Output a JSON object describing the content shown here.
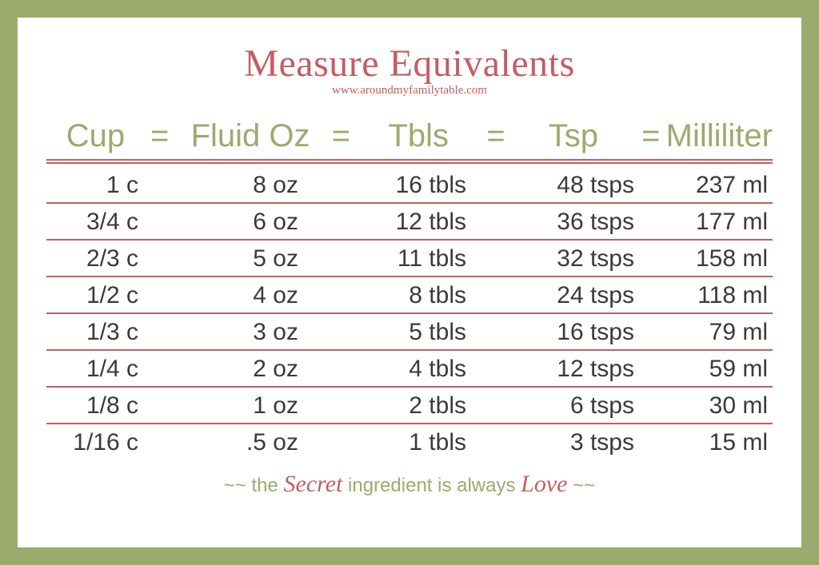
{
  "title": "Measure Equivalents",
  "subtitle": "www.aroundmyfamilytable.com",
  "colors": {
    "border_green": "#9bab6d",
    "accent_red": "#c35e63",
    "text_dark": "#3a3a3a",
    "card_bg": "#ffffff"
  },
  "typography": {
    "title_fontsize": 48,
    "header_fontsize": 40,
    "cell_fontsize": 30,
    "footer_fontsize": 24
  },
  "table": {
    "type": "table",
    "columns": [
      "Cup",
      "Fluid Oz",
      "Tbls",
      "Tsp",
      "Milliliter"
    ],
    "separator": "=",
    "rows": [
      {
        "cup": "1 c",
        "oz": "8 oz",
        "tbls": "16 tbls",
        "tsp": "48 tsps",
        "ml": "237 ml"
      },
      {
        "cup": "3/4 c",
        "oz": "6 oz",
        "tbls": "12 tbls",
        "tsp": "36 tsps",
        "ml": "177 ml"
      },
      {
        "cup": "2/3 c",
        "oz": "5 oz",
        "tbls": "11 tbls",
        "tsp": "32 tsps",
        "ml": "158 ml"
      },
      {
        "cup": "1/2 c",
        "oz": "4 oz",
        "tbls": "8 tbls",
        "tsp": "24 tsps",
        "ml": "118 ml"
      },
      {
        "cup": "1/3 c",
        "oz": "3 oz",
        "tbls": "5 tbls",
        "tsp": "16 tsps",
        "ml": "79 ml"
      },
      {
        "cup": "1/4 c",
        "oz": "2 oz",
        "tbls": "4 tbls",
        "tsp": "12 tsps",
        "ml": "59 ml"
      },
      {
        "cup": "1/8 c",
        "oz": "1 oz",
        "tbls": "2 tbls",
        "tsp": "6 tsps",
        "ml": "30 ml"
      },
      {
        "cup": "1/16 c",
        "oz": ".5 oz",
        "tbls": "1 tbls",
        "tsp": "3 tsps",
        "ml": "15 ml"
      }
    ]
  },
  "footer": {
    "prefix": "~~ the ",
    "word1": "Secret",
    "mid": " ingredient is always ",
    "word2": "Love",
    "suffix": " ~~"
  }
}
